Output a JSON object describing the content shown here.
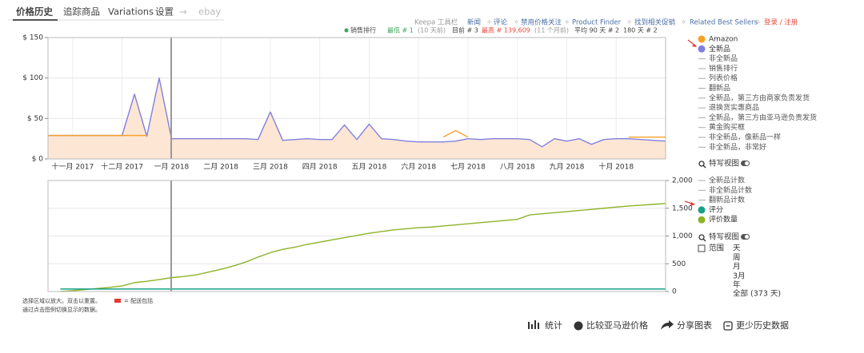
{
  "tabs": [
    "价格历史",
    "追踪商品",
    "Variations",
    "设置",
    "→",
    "ebay"
  ],
  "links": [
    "Keepa 工具栏",
    "新闻",
    "评论",
    "禁用价格关注",
    "Product Finder",
    "找到相关促销",
    "Related Best Sellers",
    "登录 / 注册"
  ],
  "summary": {
    "label": "销售排行",
    "lowest": "最低 # 1",
    "lowest_when": "(10 天前)",
    "current": "目前 # 3",
    "highest": "最高 # 139,609",
    "highest_when": "(11 个月前)",
    "average": "平均 90 天 # 2",
    "average_180": "180 天 # 2"
  },
  "chart_data": [
    {
      "type": "line",
      "categories": [
        null,
        null,
        "十一月 2017",
        null,
        null,
        null,
        "十二月 2017",
        null,
        null,
        null,
        "一月 2018",
        null,
        null,
        null,
        "二月 2018",
        null,
        null,
        null,
        "三月 2018",
        null,
        null,
        null,
        "四月 2018",
        null,
        null,
        null,
        "五月 2018",
        null,
        null,
        null,
        "六月 2018",
        null,
        null,
        null,
        "七月 2018",
        null,
        null,
        null,
        "八月 2018",
        null,
        null,
        null,
        "九月 2018",
        null,
        null,
        null,
        "十月 2018",
        null,
        null,
        null,
        null
      ],
      "series": [
        {
          "name": "Amazon",
          "color": "#f7a12a",
          "values": [
            29,
            29,
            29,
            29,
            29,
            29,
            29,
            29,
            29,
            null,
            null,
            null,
            null,
            null,
            null,
            null,
            null,
            null,
            null,
            null,
            null,
            null,
            null,
            null,
            null,
            null,
            null,
            null,
            null,
            null,
            null,
            null,
            27,
            35,
            27,
            null,
            null,
            null,
            null,
            null,
            null,
            null,
            null,
            null,
            null,
            null,
            null,
            27,
            27,
            27,
            27
          ]
        },
        {
          "name": "全新品",
          "color": "#8080e0",
          "fill": "#fde6d4",
          "values": [
            29,
            29,
            29,
            29,
            29,
            29,
            29,
            80,
            28,
            100,
            25,
            25,
            25,
            25,
            25,
            25,
            25,
            24,
            58,
            23,
            24,
            25,
            24,
            24,
            42,
            24,
            43,
            25,
            24,
            22,
            21,
            21,
            21,
            22,
            25,
            24,
            25,
            25,
            25,
            24,
            15,
            25,
            22,
            25,
            18,
            24,
            25,
            25,
            24,
            23,
            22
          ]
        }
      ],
      "legend_extra": [
        "非全新品",
        "销售排行",
        "列表价格",
        "翻新品",
        "全新品，第三方由商家负责发货",
        "退换货实惠商品",
        "全新品，第三方由亚马逊负责发货",
        "黄金购买框",
        "非全新品，像新品一样",
        "非全新品，非常好"
      ],
      "ylim": [
        0,
        150
      ],
      "yticks": [
        {
          "value": 0,
          "label": "$ 0"
        },
        {
          "value": 50,
          "label": "$ 50"
        },
        {
          "value": 100,
          "label": "$ 100"
        },
        {
          "value": 150,
          "label": "$ 150"
        }
      ],
      "grid": true
    },
    {
      "type": "line",
      "series": [
        {
          "name": "评分",
          "color": "#16a085",
          "values": [
            null,
            45,
            45,
            45,
            45,
            45,
            45,
            45,
            45,
            45,
            45,
            45,
            45,
            45,
            45,
            45,
            45,
            45,
            45,
            45,
            45,
            45,
            45,
            45,
            45,
            45,
            45,
            45,
            45,
            45,
            45,
            45,
            45,
            45,
            45,
            45,
            45,
            45,
            45,
            45,
            45,
            45,
            45,
            45,
            45,
            45,
            45,
            45,
            45,
            45,
            45
          ]
        },
        {
          "name": "评价数量",
          "color": "#8cb32a",
          "values": [
            null,
            0,
            15,
            35,
            55,
            75,
            100,
            160,
            185,
            215,
            250,
            270,
            300,
            350,
            400,
            460,
            530,
            620,
            700,
            760,
            800,
            850,
            890,
            930,
            970,
            1010,
            1050,
            1080,
            1110,
            1130,
            1150,
            1160,
            1180,
            1200,
            1220,
            1240,
            1260,
            1280,
            1300,
            1380,
            1400,
            1420,
            1440,
            1460,
            1480,
            1500,
            1520,
            1540,
            1555,
            1570,
            1585
          ]
        }
      ],
      "legend_extra": [
        "全新品计数",
        "非全新品计数",
        "翻新品计数"
      ],
      "ylim": [
        0,
        2000
      ],
      "yticks": [
        0,
        500,
        {
          "value": 1000,
          "label": "1,000"
        },
        {
          "value": 1500,
          "label": "1,500"
        },
        {
          "value": 2000,
          "label": "2,000"
        }
      ],
      "grid": true
    }
  ],
  "side_panel": {
    "zoom_1": "特写视图",
    "zoom_2": "特写视图",
    "range_label": "范围",
    "ranges": [
      "天",
      "周",
      "月",
      "3月",
      "年",
      "全部 (373 天)"
    ]
  },
  "notes": [
    "选择区域以放大。双击以重置。",
    "= 配送包括",
    "通过点击图例切换显示的数据。"
  ],
  "toolbar": [
    "统计",
    "比较亚马逊价格",
    "分享图表",
    "更少历史数据"
  ]
}
